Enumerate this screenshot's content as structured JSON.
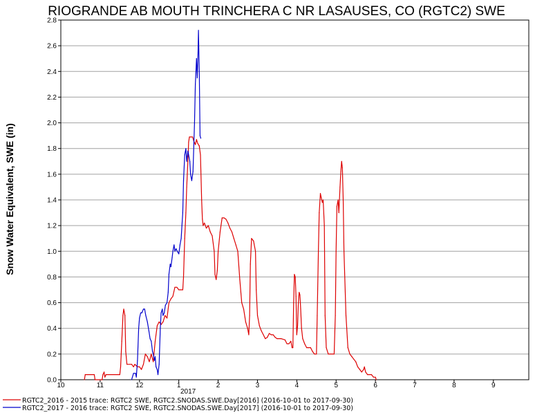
{
  "chart_data": {
    "type": "line",
    "title": "RIOGRANDE AB MOUTH TRINCHERA C NR LASAUSES, CO (RGTC2) SWE",
    "ylabel": "Snow Water Equivalent, SWE (in)",
    "xlabel": "",
    "ylim": [
      0.0,
      2.8
    ],
    "yticks": [
      "0.0",
      "0.2",
      "0.4",
      "0.6",
      "0.8",
      "1.0",
      "1.2",
      "1.4",
      "1.6",
      "1.8",
      "2.0",
      "2.2",
      "2.4",
      "2.6",
      "2.8"
    ],
    "xlim": [
      10.0,
      21.9
    ],
    "xticks": [
      {
        "value": 10,
        "label": "10"
      },
      {
        "value": 11,
        "label": "11"
      },
      {
        "value": 12,
        "label": "12"
      },
      {
        "value": 13,
        "label": "1"
      },
      {
        "value": 14,
        "label": "2"
      },
      {
        "value": 15,
        "label": "3"
      },
      {
        "value": 16,
        "label": "4"
      },
      {
        "value": 17,
        "label": "5"
      },
      {
        "value": 18,
        "label": "6"
      },
      {
        "value": 19,
        "label": "7"
      },
      {
        "value": 20,
        "label": "8"
      },
      {
        "value": 21,
        "label": "9"
      }
    ],
    "year_label": "2017",
    "grid": true,
    "legend_position": "bottom",
    "series": [
      {
        "name": "RGTC2_2016 - 2015 trace: RGTC2 SWE, RGTC2.SNODAS.SWE.Day[2016] (2016-10-01 to 2017-09-30)",
        "color": "#dd0000",
        "points": [
          [
            10.6,
            0.0
          ],
          [
            10.62,
            0.04
          ],
          [
            10.85,
            0.04
          ],
          [
            10.87,
            0.0
          ],
          [
            11.05,
            0.0
          ],
          [
            11.07,
            0.04
          ],
          [
            11.1,
            0.06
          ],
          [
            11.12,
            0.02
          ],
          [
            11.15,
            0.04
          ],
          [
            11.5,
            0.04
          ],
          [
            11.52,
            0.1
          ],
          [
            11.55,
            0.3
          ],
          [
            11.58,
            0.5
          ],
          [
            11.6,
            0.55
          ],
          [
            11.63,
            0.5
          ],
          [
            11.65,
            0.22
          ],
          [
            11.68,
            0.12
          ],
          [
            11.8,
            0.12
          ],
          [
            11.85,
            0.1
          ],
          [
            11.88,
            0.12
          ],
          [
            11.95,
            0.1
          ],
          [
            12.0,
            0.1
          ],
          [
            12.05,
            0.08
          ],
          [
            12.1,
            0.12
          ],
          [
            12.15,
            0.2
          ],
          [
            12.2,
            0.18
          ],
          [
            12.25,
            0.14
          ],
          [
            12.3,
            0.2
          ],
          [
            12.35,
            0.14
          ],
          [
            12.4,
            0.3
          ],
          [
            12.45,
            0.42
          ],
          [
            12.5,
            0.45
          ],
          [
            12.55,
            0.43
          ],
          [
            12.6,
            0.45
          ],
          [
            12.65,
            0.5
          ],
          [
            12.7,
            0.48
          ],
          [
            12.75,
            0.6
          ],
          [
            12.8,
            0.63
          ],
          [
            12.85,
            0.65
          ],
          [
            12.9,
            0.72
          ],
          [
            12.95,
            0.72
          ],
          [
            13.0,
            0.7
          ],
          [
            13.05,
            0.7
          ],
          [
            13.1,
            0.7
          ],
          [
            13.12,
            0.8
          ],
          [
            13.15,
            1.1
          ],
          [
            13.18,
            1.3
          ],
          [
            13.2,
            1.5
          ],
          [
            13.23,
            1.7
          ],
          [
            13.25,
            1.85
          ],
          [
            13.27,
            1.89
          ],
          [
            13.35,
            1.89
          ],
          [
            13.38,
            1.86
          ],
          [
            13.42,
            1.83
          ],
          [
            13.45,
            1.87
          ],
          [
            13.48,
            1.84
          ],
          [
            13.52,
            1.82
          ],
          [
            13.55,
            1.75
          ],
          [
            13.58,
            1.4
          ],
          [
            13.6,
            1.25
          ],
          [
            13.62,
            1.2
          ],
          [
            13.65,
            1.22
          ],
          [
            13.7,
            1.18
          ],
          [
            13.75,
            1.2
          ],
          [
            13.8,
            1.15
          ],
          [
            13.85,
            1.12
          ],
          [
            13.9,
            1.0
          ],
          [
            13.92,
            0.82
          ],
          [
            13.95,
            0.78
          ],
          [
            13.98,
            0.85
          ],
          [
            14.0,
            1.0
          ],
          [
            14.05,
            1.15
          ],
          [
            14.1,
            1.26
          ],
          [
            14.15,
            1.26
          ],
          [
            14.2,
            1.25
          ],
          [
            14.25,
            1.22
          ],
          [
            14.3,
            1.18
          ],
          [
            14.35,
            1.15
          ],
          [
            14.4,
            1.1
          ],
          [
            14.45,
            1.05
          ],
          [
            14.5,
            1.0
          ],
          [
            14.55,
            0.78
          ],
          [
            14.6,
            0.6
          ],
          [
            14.65,
            0.55
          ],
          [
            14.7,
            0.45
          ],
          [
            14.75,
            0.4
          ],
          [
            14.78,
            0.35
          ],
          [
            14.8,
            0.5
          ],
          [
            14.82,
            0.9
          ],
          [
            14.85,
            1.1
          ],
          [
            14.9,
            1.08
          ],
          [
            14.95,
            1.0
          ],
          [
            14.97,
            0.7
          ],
          [
            15.0,
            0.5
          ],
          [
            15.05,
            0.42
          ],
          [
            15.1,
            0.38
          ],
          [
            15.15,
            0.35
          ],
          [
            15.2,
            0.32
          ],
          [
            15.25,
            0.33
          ],
          [
            15.3,
            0.36
          ],
          [
            15.35,
            0.35
          ],
          [
            15.4,
            0.35
          ],
          [
            15.45,
            0.33
          ],
          [
            15.5,
            0.32
          ],
          [
            15.6,
            0.32
          ],
          [
            15.7,
            0.31
          ],
          [
            15.75,
            0.28
          ],
          [
            15.8,
            0.28
          ],
          [
            15.85,
            0.3
          ],
          [
            15.88,
            0.25
          ],
          [
            15.9,
            0.25
          ],
          [
            15.92,
            0.6
          ],
          [
            15.94,
            0.82
          ],
          [
            15.96,
            0.8
          ],
          [
            15.98,
            0.65
          ],
          [
            16.0,
            0.35
          ],
          [
            16.02,
            0.42
          ],
          [
            16.04,
            0.6
          ],
          [
            16.06,
            0.68
          ],
          [
            16.08,
            0.66
          ],
          [
            16.1,
            0.55
          ],
          [
            16.12,
            0.4
          ],
          [
            16.15,
            0.32
          ],
          [
            16.2,
            0.28
          ],
          [
            16.25,
            0.25
          ],
          [
            16.3,
            0.25
          ],
          [
            16.35,
            0.25
          ],
          [
            16.4,
            0.22
          ],
          [
            16.45,
            0.2
          ],
          [
            16.5,
            0.2
          ],
          [
            16.52,
            0.5
          ],
          [
            16.55,
            1.0
          ],
          [
            16.57,
            1.3
          ],
          [
            16.6,
            1.45
          ],
          [
            16.62,
            1.42
          ],
          [
            16.65,
            1.38
          ],
          [
            16.67,
            1.4
          ],
          [
            16.7,
            1.2
          ],
          [
            16.72,
            0.5
          ],
          [
            16.75,
            0.25
          ],
          [
            16.8,
            0.2
          ],
          [
            16.85,
            0.2
          ],
          [
            16.9,
            0.2
          ],
          [
            16.95,
            0.2
          ],
          [
            16.98,
            0.5
          ],
          [
            17.0,
            1.0
          ],
          [
            17.02,
            1.35
          ],
          [
            17.05,
            1.4
          ],
          [
            17.07,
            1.3
          ],
          [
            17.1,
            1.5
          ],
          [
            17.12,
            1.62
          ],
          [
            17.14,
            1.7
          ],
          [
            17.16,
            1.65
          ],
          [
            17.18,
            1.4
          ],
          [
            17.2,
            1.0
          ],
          [
            17.25,
            0.5
          ],
          [
            17.3,
            0.25
          ],
          [
            17.35,
            0.2
          ],
          [
            17.4,
            0.18
          ],
          [
            17.45,
            0.16
          ],
          [
            17.5,
            0.14
          ],
          [
            17.55,
            0.1
          ],
          [
            17.6,
            0.08
          ],
          [
            17.65,
            0.06
          ],
          [
            17.7,
            0.08
          ],
          [
            17.72,
            0.1
          ],
          [
            17.75,
            0.06
          ],
          [
            17.8,
            0.04
          ],
          [
            17.9,
            0.04
          ],
          [
            17.95,
            0.02
          ],
          [
            18.0,
            0.02
          ],
          [
            18.02,
            0.0
          ]
        ]
      },
      {
        "name": "RGTC2_2017 - 2016 trace: RGTC2 SWE, RGTC2.SNODAS.SWE.Day[2017] (2016-10-01 to 2017-09-30)",
        "color": "#0000cc",
        "points": [
          [
            11.8,
            0.0
          ],
          [
            11.82,
            0.02
          ],
          [
            11.85,
            0.05
          ],
          [
            11.9,
            0.05
          ],
          [
            11.92,
            0.02
          ],
          [
            11.95,
            0.15
          ],
          [
            11.98,
            0.4
          ],
          [
            12.0,
            0.48
          ],
          [
            12.03,
            0.52
          ],
          [
            12.06,
            0.52
          ],
          [
            12.1,
            0.55
          ],
          [
            12.13,
            0.55
          ],
          [
            12.16,
            0.5
          ],
          [
            12.2,
            0.45
          ],
          [
            12.24,
            0.38
          ],
          [
            12.27,
            0.32
          ],
          [
            12.3,
            0.3
          ],
          [
            12.33,
            0.22
          ],
          [
            12.35,
            0.2
          ],
          [
            12.38,
            0.15
          ],
          [
            12.4,
            0.18
          ],
          [
            12.42,
            0.1
          ],
          [
            12.45,
            0.08
          ],
          [
            12.47,
            0.04
          ],
          [
            12.5,
            0.12
          ],
          [
            12.53,
            0.4
          ],
          [
            12.55,
            0.52
          ],
          [
            12.58,
            0.55
          ],
          [
            12.6,
            0.5
          ],
          [
            12.63,
            0.52
          ],
          [
            12.66,
            0.58
          ],
          [
            12.7,
            0.6
          ],
          [
            12.73,
            0.68
          ],
          [
            12.75,
            0.82
          ],
          [
            12.78,
            0.9
          ],
          [
            12.8,
            0.88
          ],
          [
            12.83,
            0.95
          ],
          [
            12.85,
            1.0
          ],
          [
            12.88,
            1.05
          ],
          [
            12.9,
            1.0
          ],
          [
            12.93,
            1.02
          ],
          [
            12.96,
            1.0
          ],
          [
            13.0,
            0.98
          ],
          [
            13.03,
            1.05
          ],
          [
            13.06,
            1.1
          ],
          [
            13.08,
            1.2
          ],
          [
            13.1,
            1.3
          ],
          [
            13.12,
            1.55
          ],
          [
            13.15,
            1.75
          ],
          [
            13.18,
            1.8
          ],
          [
            13.2,
            1.7
          ],
          [
            13.23,
            1.78
          ],
          [
            13.25,
            1.75
          ],
          [
            13.28,
            1.7
          ],
          [
            13.3,
            1.6
          ],
          [
            13.33,
            1.55
          ],
          [
            13.36,
            1.62
          ],
          [
            13.4,
            2.0
          ],
          [
            13.42,
            2.3
          ],
          [
            13.45,
            2.5
          ],
          [
            13.47,
            2.35
          ],
          [
            13.49,
            2.55
          ],
          [
            13.5,
            2.72
          ],
          [
            13.52,
            2.4
          ],
          [
            13.54,
            1.9
          ],
          [
            13.56,
            1.88
          ]
        ]
      }
    ]
  }
}
